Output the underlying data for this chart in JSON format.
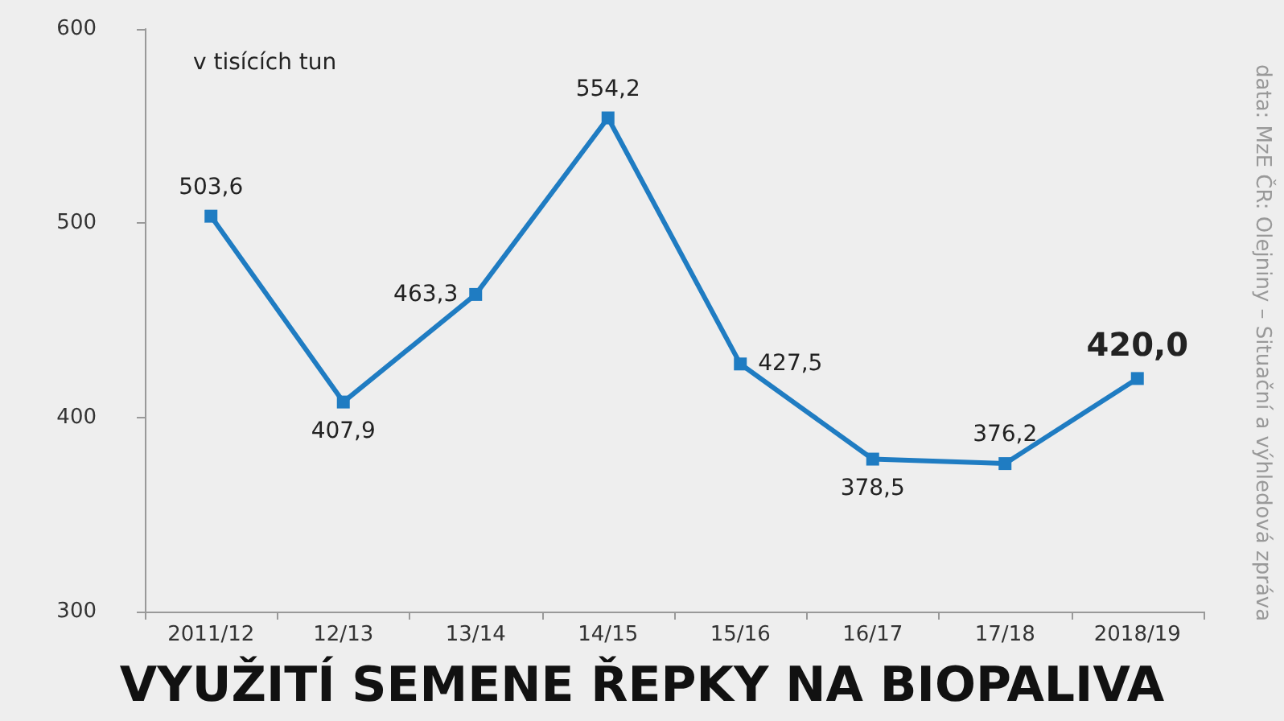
{
  "chart_data": {
    "type": "line",
    "title": "VYUŽITÍ SEMENE ŘEPKY NA BIOPALIVA",
    "ylabel": "v tisících tun",
    "annotations": [
      "data: MzE ČR: Olejniny – Situační a výhledová zpráva"
    ],
    "categories": [
      "2011/12",
      "12/13",
      "13/14",
      "14/15",
      "15/16",
      "16/17",
      "17/18",
      "2018/19"
    ],
    "values": [
      503.6,
      407.9,
      463.3,
      554.2,
      427.5,
      378.5,
      376.2,
      420.0
    ],
    "value_labels": [
      "503,6",
      "407,9",
      "463,3",
      "554,2",
      "427,5",
      "378,5",
      "376,2",
      "420,0"
    ],
    "color": "#1f7cc2",
    "marker": "square",
    "line_style": "solid",
    "ylim": [
      300,
      600
    ],
    "yticks": [
      300,
      400,
      500,
      600
    ]
  }
}
